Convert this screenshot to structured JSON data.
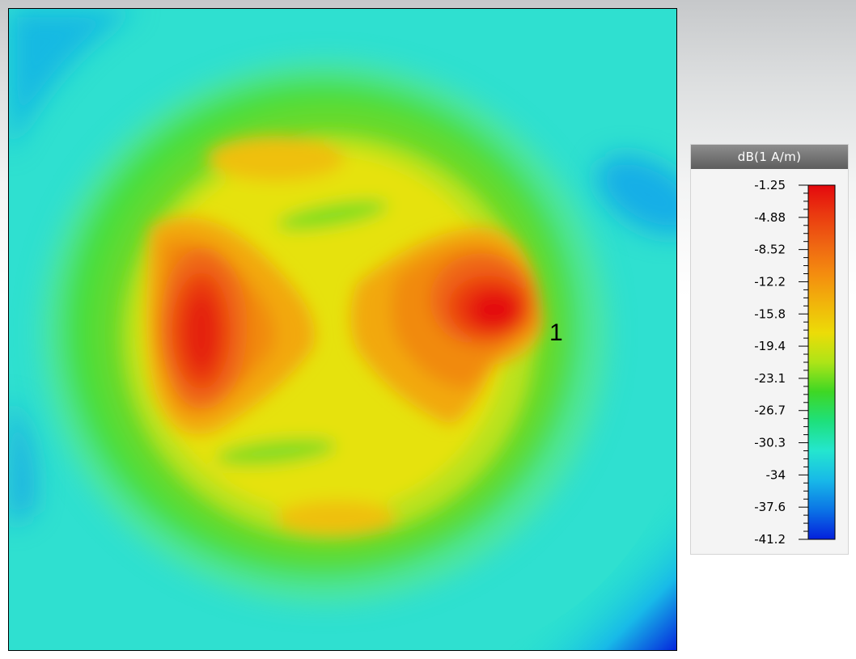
{
  "legend": {
    "title": "dB(1 A/m)",
    "ticks": [
      "-1.25",
      "-4.88",
      "-8.52",
      "-12.2",
      "-15.8",
      "-19.4",
      "-23.1",
      "-26.7",
      "-30.3",
      "-34",
      "-37.6",
      "-41.2"
    ],
    "colors": [
      "#e4080d",
      "#ea3a10",
      "#ef6512",
      "#f48c0f",
      "#f1b40b",
      "#ecdc08",
      "#aee417",
      "#3ed724",
      "#1ee07c",
      "#24e6cf",
      "#18b9e8",
      "#0b74e6",
      "#0420dc"
    ]
  },
  "annotation": {
    "label": "1"
  },
  "chart_data": {
    "type": "heatmap",
    "title": "",
    "xlabel": "",
    "ylabel": "",
    "unit": "dB(1 A/m)",
    "colorbar_ticks": [
      -1.25,
      -4.88,
      -8.52,
      -12.2,
      -15.8,
      -19.4,
      -23.1,
      -26.7,
      -30.3,
      -34,
      -37.6,
      -41.2
    ],
    "value_range": [
      -41.2,
      -1.25
    ],
    "annotations": [
      "1"
    ]
  }
}
